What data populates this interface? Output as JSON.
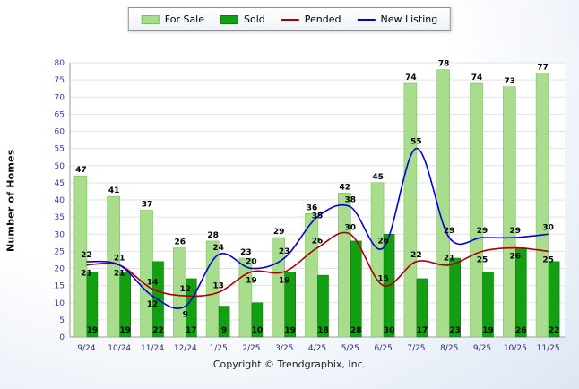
{
  "footer": {
    "copyright": "Copyright © Trendgraphix, Inc."
  },
  "chart_data": {
    "type": "bar",
    "subtype": "grouped bars with smoothed line overlays",
    "categories": [
      "9/24",
      "10/24",
      "11/24",
      "12/24",
      "1/25",
      "2/25",
      "3/25",
      "4/25",
      "5/25",
      "6/25",
      "7/25",
      "8/25",
      "9/25",
      "10/25",
      "11/25"
    ],
    "series": [
      {
        "name": "For Sale",
        "type": "bar",
        "color": "#a8dd8d",
        "edge": "#7cc05e",
        "values": [
          47,
          41,
          37,
          26,
          28,
          23,
          29,
          36,
          42,
          45,
          74,
          78,
          74,
          73,
          77
        ]
      },
      {
        "name": "Sold",
        "type": "bar",
        "color": "#12a012",
        "edge": "#0a7a0a",
        "values": [
          19,
          19,
          22,
          17,
          9,
          10,
          19,
          18,
          28,
          30,
          17,
          23,
          19,
          26,
          22
        ]
      },
      {
        "name": "Pended",
        "type": "line",
        "color": "#aa0000",
        "values": [
          21,
          21,
          14,
          12,
          13,
          19,
          19,
          26,
          30,
          15,
          22,
          21,
          25,
          26,
          25
        ]
      },
      {
        "name": "New Listing",
        "type": "line",
        "color": "#0000dd",
        "values": [
          22,
          21,
          12,
          9,
          24,
          20,
          23,
          35,
          38,
          26,
          55,
          29,
          29,
          29,
          30
        ]
      }
    ],
    "title": "",
    "xlabel": "",
    "ylabel": "Number of Homes",
    "ylim": [
      0,
      80
    ],
    "tick_step": 5,
    "grid": true,
    "legend_position": "top",
    "axis_label_color": "#3434b2",
    "x_label_color": "#2d2d66",
    "value_label_color": "#000000"
  }
}
